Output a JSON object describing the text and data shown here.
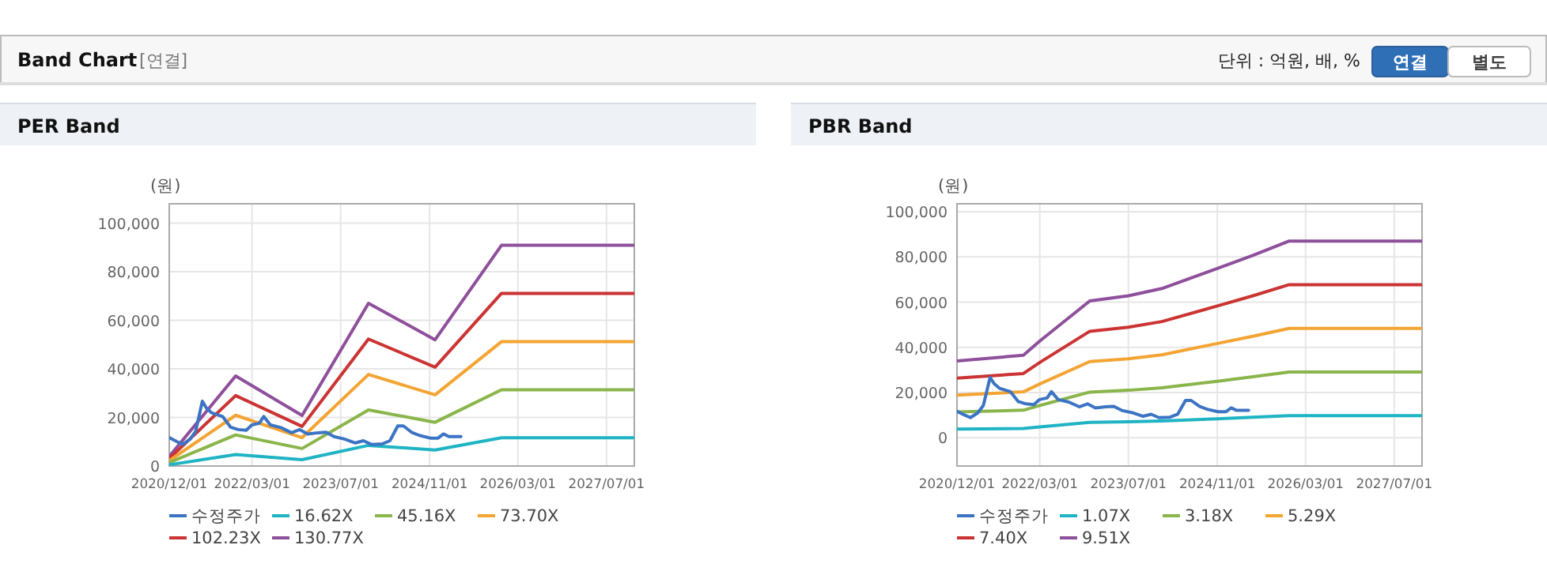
{
  "chart_data": [
    {
      "type": "other",
      "title": "Band Chart",
      "annotations": [
        "[연결]",
        "단위 : 억원, 배, %",
        "연결",
        "별도"
      ]
    },
    {
      "type": "line",
      "title": "PER Band",
      "ylabel": "(원)",
      "grid": true,
      "legend": "bottom",
      "xlim": [
        "2020-12-01",
        "2027-12-01"
      ],
      "ylim": [
        0,
        108000
      ],
      "xticks": [
        {
          "value": "2020-12-01",
          "label": "2020/12/01"
        },
        {
          "value": "2022-03-01",
          "label": "2022/03/01"
        },
        {
          "value": "2023-07-01",
          "label": "2023/07/01"
        },
        {
          "value": "2024-11-01",
          "label": "2024/11/01"
        },
        {
          "value": "2026-03-01",
          "label": "2026/03/01"
        },
        {
          "value": "2027-07-01",
          "label": "2027/07/01"
        }
      ],
      "yticks": [
        0,
        {
          "value": 20000,
          "label": "20,000"
        },
        {
          "value": 40000,
          "label": "40,000"
        },
        {
          "value": 60000,
          "label": "60,000"
        },
        {
          "value": 80000,
          "label": "80,000"
        },
        {
          "value": 100000,
          "label": "100,000"
        }
      ],
      "x": [
        "2020-12-01",
        "2021-12-01",
        "2022-12-01",
        "2023-12-01",
        "2024-12-01",
        "2025-12-01",
        "2027-12-01"
      ],
      "series": [
        {
          "name": "수정주가",
          "color": "#3c74c4",
          "x": [
            "2020-12-01",
            "2021-01-13",
            "2021-02-13",
            "2021-03-25",
            "2021-04-25",
            "2021-06-01",
            "2021-06-22",
            "2021-07-22",
            "2021-09-20",
            "2021-11-03",
            "2021-12-15",
            "2022-01-28",
            "2022-02-28",
            "2022-04-10",
            "2022-05-04",
            "2022-06-10",
            "2022-08-07",
            "2022-10-04",
            "2022-11-18",
            "2023-01-01",
            "2023-02-28",
            "2023-04-12",
            "2023-05-25",
            "2023-07-22",
            "2023-09-20",
            "2023-11-03",
            "2023-12-16",
            "2024-02-15",
            "2024-03-28",
            "2024-05-10",
            "2024-06-10",
            "2024-07-25",
            "2024-09-06",
            "2024-11-03",
            "2024-12-18",
            "2025-01-16",
            "2025-02-15",
            "2025-04-22"
          ],
          "values": [
            11700,
            10000,
            8900,
            11000,
            14300,
            26700,
            24000,
            21900,
            20400,
            16000,
            15000,
            14700,
            16900,
            17600,
            20400,
            16900,
            15800,
            13700,
            15000,
            13200,
            13700,
            13900,
            12100,
            11100,
            9500,
            10400,
            8900,
            9100,
            10400,
            16500,
            16500,
            13900,
            12600,
            11500,
            11500,
            13200,
            12100,
            12100
          ]
        },
        {
          "name": "16.62X",
          "color": "#1fb4c4",
          "values": [
            500,
            4700,
            2600,
            8500,
            6600,
            11600,
            11600
          ]
        },
        {
          "name": "45.16X",
          "color": "#8ab54a",
          "values": [
            1400,
            12800,
            7200,
            23100,
            18000,
            31400,
            31400
          ]
        },
        {
          "name": "73.70X",
          "color": "#f3a433",
          "values": [
            2200,
            20900,
            11700,
            37700,
            29300,
            51200,
            51200
          ]
        },
        {
          "name": "102.23X",
          "color": "#cc3333",
          "values": [
            3100,
            29000,
            16300,
            52300,
            40700,
            71100,
            71100
          ]
        },
        {
          "name": "130.77X",
          "color": "#8e4f9b",
          "values": [
            3900,
            37100,
            20800,
            67000,
            52000,
            90900,
            90900
          ]
        }
      ]
    },
    {
      "type": "line",
      "title": "PBR Band",
      "ylabel": "(원)",
      "grid": true,
      "legend": "bottom",
      "xlim": [
        "2020-12-01",
        "2027-12-01"
      ],
      "ylim": [
        -12500,
        103500
      ],
      "xticks": [
        {
          "value": "2020-12-01",
          "label": "2020/12/01"
        },
        {
          "value": "2022-03-01",
          "label": "2022/03/01"
        },
        {
          "value": "2023-07-01",
          "label": "2023/07/01"
        },
        {
          "value": "2024-11-01",
          "label": "2024/11/01"
        },
        {
          "value": "2026-03-01",
          "label": "2026/03/01"
        },
        {
          "value": "2027-07-01",
          "label": "2027/07/01"
        }
      ],
      "yticks": [
        0,
        {
          "value": 20000,
          "label": "20,000"
        },
        {
          "value": 40000,
          "label": "40,000"
        },
        {
          "value": 60000,
          "label": "60,000"
        },
        {
          "value": 80000,
          "label": "80,000"
        },
        {
          "value": 100000,
          "label": "100,000"
        }
      ],
      "x": [
        "2020-12-01",
        "2021-12-01",
        "2022-03-01",
        "2022-12-01",
        "2023-07-01",
        "2024-01-01",
        "2024-11-01",
        "2025-05-15",
        "2025-12-01",
        "2027-12-01"
      ],
      "series": [
        {
          "name": "수정주가",
          "color": "#3c74c4",
          "x": [
            "2020-12-01",
            "2021-01-13",
            "2021-02-13",
            "2021-03-25",
            "2021-04-25",
            "2021-06-01",
            "2021-06-22",
            "2021-07-22",
            "2021-09-20",
            "2021-11-03",
            "2021-12-15",
            "2022-01-28",
            "2022-02-28",
            "2022-04-10",
            "2022-05-04",
            "2022-06-10",
            "2022-08-07",
            "2022-10-04",
            "2022-11-18",
            "2023-01-01",
            "2023-02-28",
            "2023-04-12",
            "2023-05-25",
            "2023-07-22",
            "2023-09-20",
            "2023-11-03",
            "2023-12-16",
            "2024-02-15",
            "2024-03-28",
            "2024-05-10",
            "2024-06-10",
            "2024-07-25",
            "2024-09-06",
            "2024-11-03",
            "2024-12-18",
            "2025-01-16",
            "2025-02-15",
            "2025-04-22"
          ],
          "values": [
            11700,
            10000,
            8900,
            11000,
            14300,
            26700,
            24000,
            21900,
            20400,
            16000,
            15000,
            14700,
            16900,
            17600,
            20400,
            16900,
            15800,
            13700,
            15000,
            13200,
            13700,
            13900,
            12100,
            11100,
            9500,
            10400,
            8900,
            9100,
            10400,
            16500,
            16500,
            13900,
            12600,
            11500,
            11500,
            13200,
            12100,
            12100
          ]
        },
        {
          "name": "1.07X",
          "color": "#1fb4c4",
          "values": [
            3800,
            4100,
            4800,
            6800,
            7100,
            7400,
            8400,
            9100,
            9800,
            9800
          ]
        },
        {
          "name": "3.18X",
          "color": "#8ab54a",
          "values": [
            11400,
            12200,
            14300,
            20200,
            21000,
            22100,
            25000,
            27000,
            29100,
            29100
          ]
        },
        {
          "name": "5.29X",
          "color": "#f3a433",
          "values": [
            18900,
            20300,
            23800,
            33700,
            34900,
            36700,
            41700,
            44900,
            48400,
            48400
          ]
        },
        {
          "name": "7.40X",
          "color": "#cc3333",
          "values": [
            26400,
            28400,
            33300,
            47100,
            48900,
            51400,
            58300,
            62800,
            67700,
            67700
          ]
        },
        {
          "name": "9.51X",
          "color": "#8e4f9b",
          "values": [
            34000,
            36500,
            42800,
            60500,
            62800,
            66000,
            74900,
            80700,
            87000,
            87000
          ]
        }
      ]
    }
  ]
}
